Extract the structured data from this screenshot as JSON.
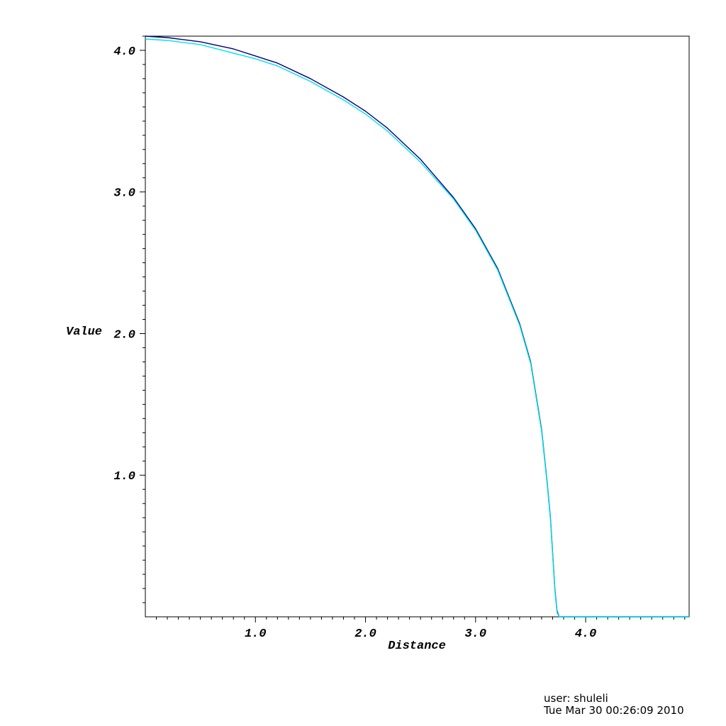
{
  "chart_data": {
    "type": "line",
    "xlabel": "Distance",
    "ylabel": "Value",
    "xlim": [
      0.0,
      4.94
    ],
    "ylim": [
      0.0,
      4.1
    ],
    "x_ticks": [
      "1.0",
      "2.0",
      "3.0",
      "4.0"
    ],
    "x_tick_values": [
      1.0,
      2.0,
      3.0,
      4.0
    ],
    "y_ticks": [
      "1.0",
      "2.0",
      "3.0",
      "4.0"
    ],
    "y_tick_values": [
      1.0,
      2.0,
      3.0,
      4.0
    ],
    "grid": false,
    "series": [
      {
        "color": "#000080",
        "x": [
          0.0,
          0.2,
          0.5,
          0.8,
          1.0,
          1.2,
          1.5,
          1.8,
          2.0,
          2.2,
          2.5,
          2.8,
          3.0,
          3.2,
          3.4,
          3.5,
          3.6,
          3.65,
          3.68,
          3.7,
          3.72,
          3.74,
          3.76,
          4.0,
          4.5,
          4.94
        ],
        "y": [
          4.1,
          4.09,
          4.06,
          4.01,
          3.96,
          3.91,
          3.8,
          3.67,
          3.57,
          3.45,
          3.23,
          2.96,
          2.74,
          2.46,
          2.07,
          1.8,
          1.32,
          0.95,
          0.7,
          0.45,
          0.2,
          0.04,
          0.0,
          0.0,
          0.0,
          0.0
        ]
      },
      {
        "color": "#00e0e8",
        "x": [
          0.0,
          0.2,
          0.5,
          0.8,
          1.0,
          1.2,
          1.5,
          1.8,
          2.0,
          2.2,
          2.5,
          2.8,
          3.0,
          3.2,
          3.4,
          3.5,
          3.6,
          3.65,
          3.68,
          3.7,
          3.72,
          3.74,
          3.76,
          4.0,
          4.5,
          4.94
        ],
        "y": [
          4.08,
          4.07,
          4.04,
          3.98,
          3.94,
          3.89,
          3.78,
          3.65,
          3.55,
          3.43,
          3.21,
          2.95,
          2.73,
          2.45,
          2.06,
          1.79,
          1.31,
          0.94,
          0.69,
          0.44,
          0.19,
          0.03,
          0.0,
          0.0,
          0.0,
          0.0
        ]
      }
    ]
  },
  "footer": {
    "user": "user: shuleli",
    "timestamp": "Tue Mar 30 00:26:09 2010"
  }
}
